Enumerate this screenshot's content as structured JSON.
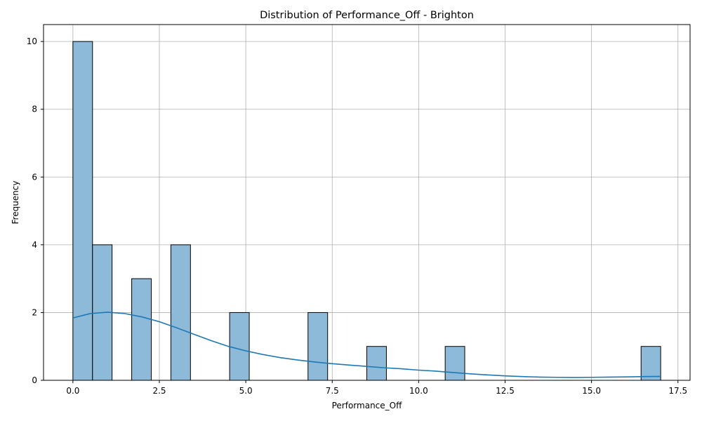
{
  "chart_data": {
    "type": "bar",
    "title": "Distribution of Performance_Off - Brighton",
    "xlabel": "Performance_Off",
    "ylabel": "Frequency",
    "xlim": [
      -0.85,
      17.85
    ],
    "ylim": [
      0,
      10.5
    ],
    "xticks": [
      0.0,
      2.5,
      5.0,
      7.5,
      10.0,
      12.5,
      15.0,
      17.5
    ],
    "xtick_labels": [
      "0.0",
      "2.5",
      "5.0",
      "7.5",
      "10.0",
      "12.5",
      "15.0",
      "17.5"
    ],
    "yticks": [
      0,
      2,
      4,
      6,
      8,
      10
    ],
    "ytick_labels": [
      "0",
      "2",
      "4",
      "6",
      "8",
      "10"
    ],
    "grid": true,
    "bars": [
      {
        "x0": 0.0,
        "x1": 0.567,
        "count": 10
      },
      {
        "x0": 0.567,
        "x1": 1.133,
        "count": 4
      },
      {
        "x0": 1.7,
        "x1": 2.267,
        "count": 3
      },
      {
        "x0": 2.833,
        "x1": 3.4,
        "count": 4
      },
      {
        "x0": 4.533,
        "x1": 5.1,
        "count": 2
      },
      {
        "x0": 6.8,
        "x1": 7.367,
        "count": 2
      },
      {
        "x0": 8.5,
        "x1": 9.067,
        "count": 1
      },
      {
        "x0": 10.767,
        "x1": 11.333,
        "count": 1
      },
      {
        "x0": 16.433,
        "x1": 17.0,
        "count": 1
      }
    ],
    "kde": {
      "x": [
        0,
        0.5,
        1,
        1.5,
        2,
        2.5,
        3,
        3.5,
        4,
        4.5,
        5,
        5.5,
        6,
        6.5,
        7,
        7.5,
        8,
        8.5,
        9,
        9.5,
        10,
        10.5,
        11,
        11.5,
        12,
        12.5,
        13,
        13.5,
        14,
        14.5,
        15,
        15.5,
        16,
        16.5,
        17
      ],
      "y": [
        1.84,
        1.97,
        2.01,
        1.97,
        1.87,
        1.73,
        1.55,
        1.36,
        1.17,
        1.0,
        0.87,
        0.76,
        0.67,
        0.6,
        0.54,
        0.49,
        0.45,
        0.41,
        0.37,
        0.34,
        0.3,
        0.27,
        0.23,
        0.19,
        0.16,
        0.13,
        0.11,
        0.095,
        0.088,
        0.085,
        0.088,
        0.095,
        0.1,
        0.11,
        0.115
      ]
    },
    "colors": {
      "bar_fill": "#8ebad9",
      "bar_edge": "#000000",
      "kde_line": "#1f77b4",
      "grid": "#b0b0b0"
    }
  }
}
